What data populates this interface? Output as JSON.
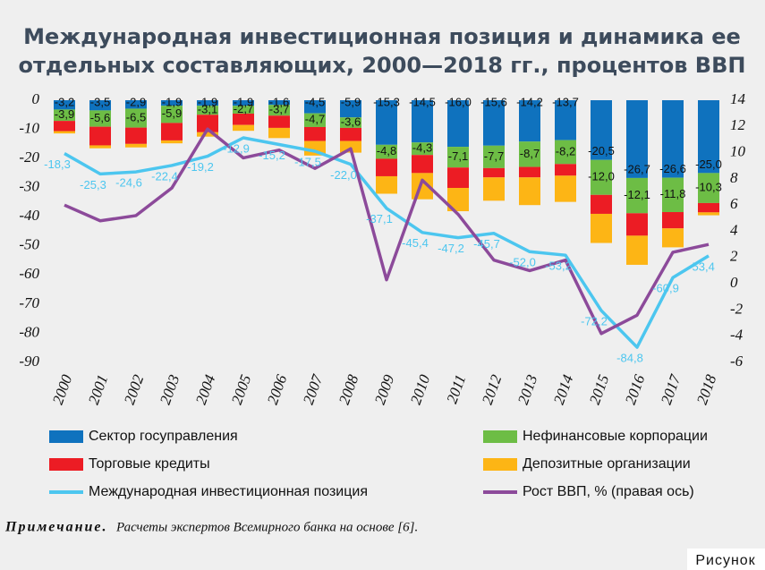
{
  "chart_data": {
    "type": "stacked_bar_line",
    "title": [
      "Международная инвестиционная позиция и динамика ее",
      "отдельных составляющих, 2000—2018 гг., процентов ВВП"
    ],
    "categories": [
      "2000",
      "2001",
      "2002",
      "2003",
      "2004",
      "2005",
      "2006",
      "2007",
      "2008",
      "2009",
      "2010",
      "2011",
      "2012",
      "2013",
      "2014",
      "2015",
      "2016",
      "2017",
      "2018"
    ],
    "ylim": [
      -90,
      0
    ],
    "yticks": [
      0,
      -10,
      -20,
      -30,
      -40,
      -50,
      -60,
      -70,
      -80,
      -90
    ],
    "y2lim": [
      -6,
      14
    ],
    "y2ticks": [
      14,
      12,
      10,
      8,
      6,
      4,
      2,
      0,
      -2,
      -4,
      -6
    ],
    "grid": false,
    "series": [
      {
        "name": "Сектор госуправления",
        "kind": "bar",
        "color": "#0f72be",
        "values": [
          -3.2,
          -3.5,
          -2.9,
          -1.9,
          -1.9,
          -1.9,
          -1.6,
          -4.5,
          -5.9,
          -15.3,
          -14.5,
          -16.0,
          -15.6,
          -14.2,
          -13.7,
          -20.5,
          -26.7,
          -26.6,
          -25.0
        ],
        "value_labels": [
          "-3,2",
          "-3,5",
          "-2,9",
          "-1,9",
          "-1,9",
          "-1,9",
          "-1,6",
          "-4,5",
          "-5,9",
          "-15,3",
          "-14,5",
          "-16,0",
          "-15,6",
          "-14,2",
          "-13,7",
          "-20,5",
          "-26,7",
          "-26,6",
          "-25,0"
        ]
      },
      {
        "name": "Нефинансовые корпорации",
        "kind": "bar",
        "color": "#6dbd45",
        "values": [
          -3.9,
          -5.6,
          -6.5,
          -5.9,
          -3.1,
          -2.7,
          -3.7,
          -4.7,
          -3.6,
          -4.8,
          -4.3,
          -7.1,
          -7.7,
          -8.7,
          -8.2,
          -12.0,
          -12.1,
          -11.8,
          -10.3
        ],
        "value_labels": [
          "-3,9",
          "-5,6",
          "-6,5",
          "-5,9",
          "-3,1",
          "-2,7",
          "-3,7",
          "-4,7",
          "-3,6",
          "-4,8",
          "-4,3",
          "-7,1",
          "-7,7",
          "-8,7",
          "-8,2",
          "-12,0",
          "-12,1",
          "-11,8",
          "-10,3"
        ]
      },
      {
        "name": "Торговые кредиты",
        "kind": "bar",
        "color": "#ec1c24",
        "values": [
          -3.5,
          -6.4,
          -5.6,
          -6.0,
          -6.0,
          -3.9,
          -4.2,
          -4.8,
          -4.5,
          -6.0,
          -6.2,
          -7.0,
          -3.2,
          -3.6,
          -4.0,
          -6.5,
          -7.7,
          -5.6,
          -3.2
        ]
      },
      {
        "name": "Депозитные организации",
        "kind": "bar",
        "color": "#fdb515",
        "values": [
          -0.8,
          -1.0,
          -1.2,
          -1.0,
          -1.5,
          -2.0,
          -3.5,
          -5.0,
          -4.0,
          -6.0,
          -9.0,
          -8.0,
          -8.0,
          -9.5,
          -9.0,
          -10.0,
          -10.0,
          -6.5,
          -1.0
        ]
      },
      {
        "name": "Международная инвестиционная позиция",
        "kind": "line",
        "color": "#4cc6ef",
        "values": [
          -18.3,
          -25.3,
          -24.6,
          -22.4,
          -19.2,
          -12.9,
          -15.2,
          -17.5,
          -22.0,
          -37.1,
          -45.4,
          -47.2,
          -45.7,
          -52.0,
          -53.2,
          -72.2,
          -84.8,
          -60.9,
          -53.4
        ],
        "value_labels": [
          "-18,3",
          "-25,3",
          "-24,6",
          "-22,4",
          "-19,2",
          "-12,9",
          "-15,2",
          "-17,5",
          "-22,0",
          "-37,1",
          "-45,4",
          "-47,2",
          "-45,7",
          "-52,0",
          "-53,2",
          "-72,2",
          "-84,8",
          "-60,9",
          "-53,4"
        ]
      },
      {
        "name": "Рост ВВП, % (правая ось)",
        "kind": "line",
        "axis": "y2",
        "color": "#8c4a9a",
        "values": [
          6.0,
          4.8,
          5.2,
          7.3,
          11.8,
          9.6,
          10.2,
          8.8,
          10.3,
          0.3,
          7.9,
          5.3,
          1.8,
          1.0,
          1.8,
          -3.8,
          -2.4,
          2.4,
          3.0
        ]
      }
    ],
    "note_label": "Примечание.",
    "note": "Расчеты экспертов Всемирного банка на основе [6].",
    "figure_label": "Рисунок"
  }
}
